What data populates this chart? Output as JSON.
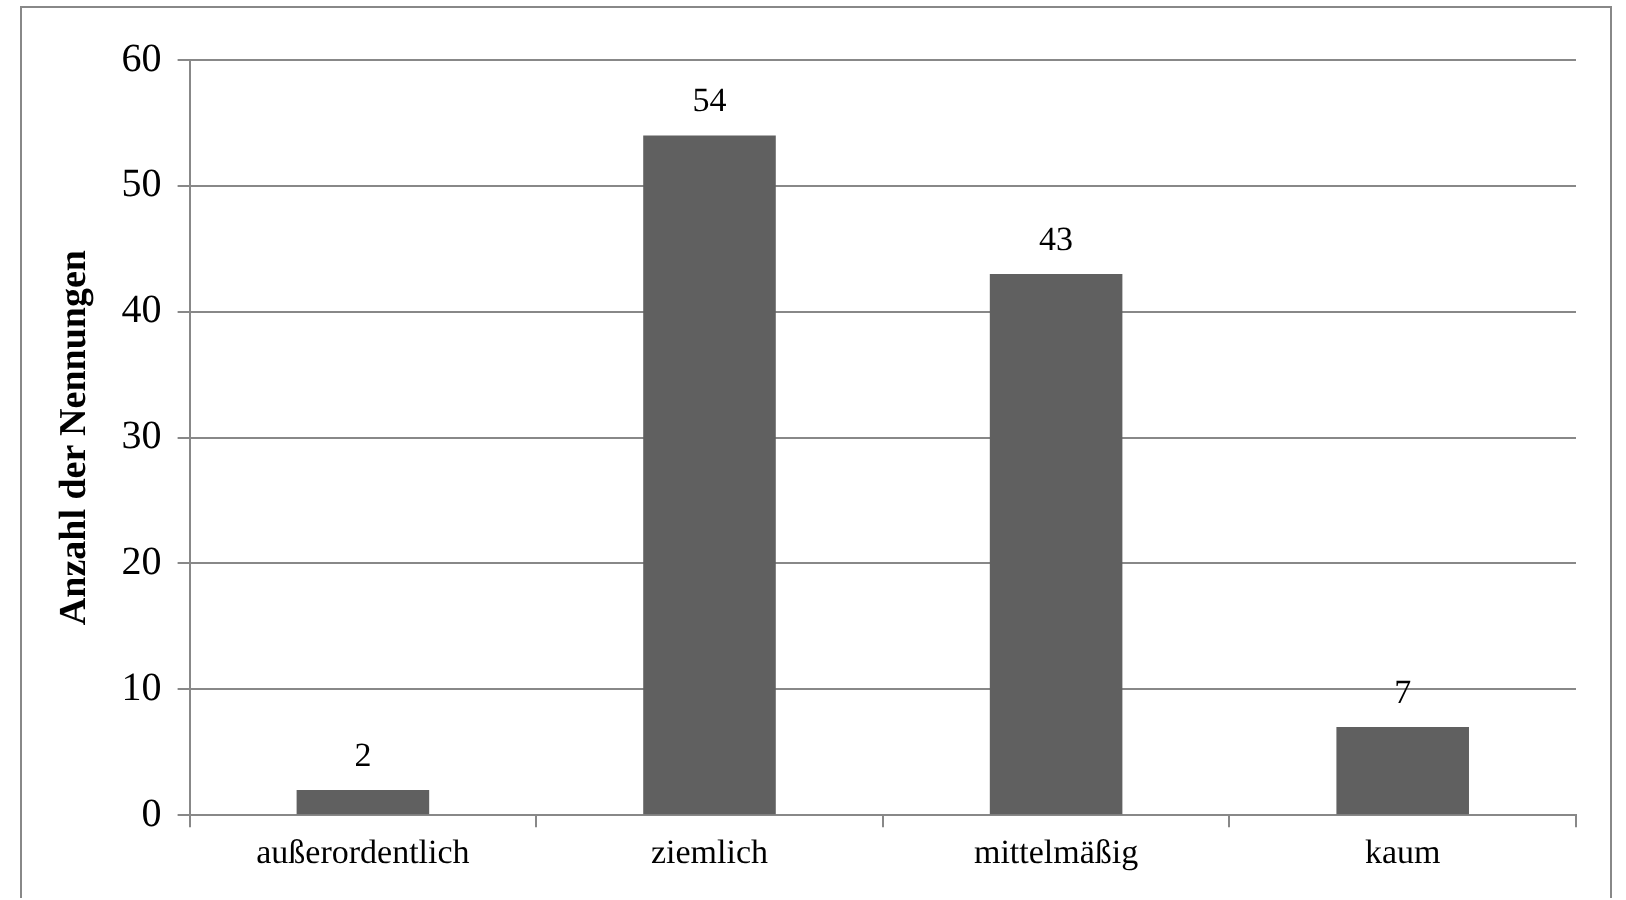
{
  "chart_data": {
    "type": "bar",
    "ylabel": "Anzahl der Nennungen",
    "categories": [
      "außerordentlich",
      "ziemlich",
      "mittelmäßig",
      "kaum"
    ],
    "values": [
      2,
      54,
      43,
      7
    ],
    "color": "#606060",
    "ylim": [
      0,
      60
    ],
    "yticks": [
      0,
      10,
      20,
      30,
      40,
      50,
      60
    ],
    "grid": "y",
    "legend": false,
    "data_labels": true
  }
}
